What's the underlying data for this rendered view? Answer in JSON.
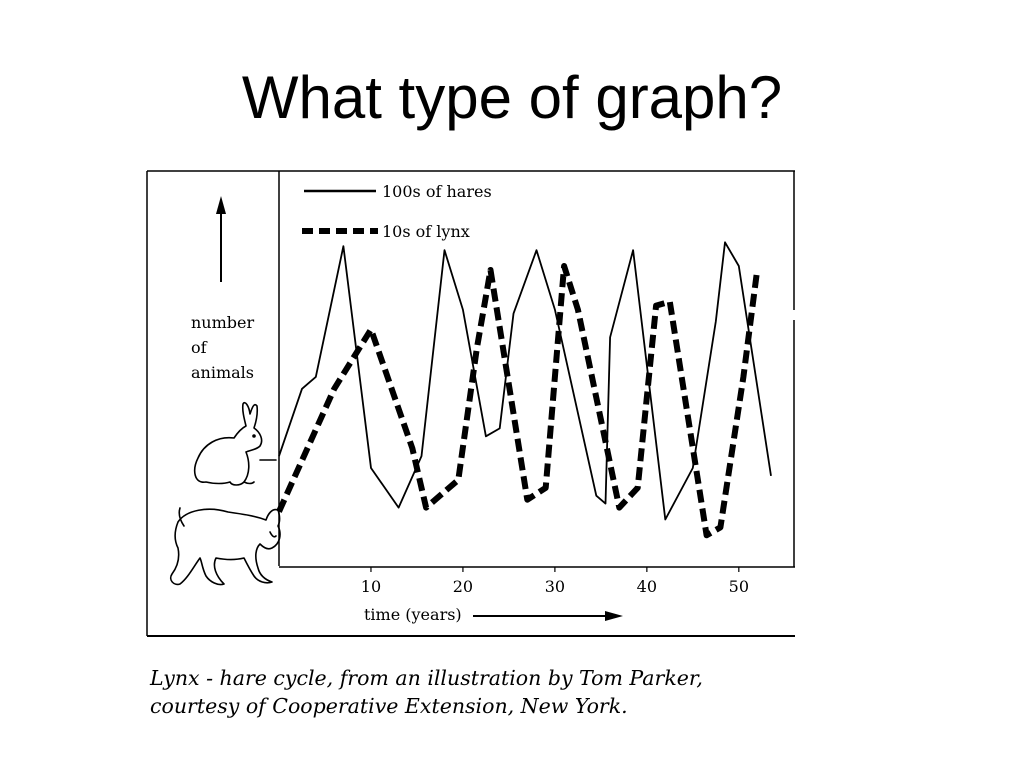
{
  "slide": {
    "title": "What type of graph?"
  },
  "caption": {
    "line1": "Lynx - hare cycle, from an illustration by Tom Parker,",
    "line2": "courtesy of Cooperative Extension, New York."
  },
  "icons": [
    "up-arrow-icon",
    "rabbit-icon",
    "lynx-icon",
    "right-arrow-icon"
  ],
  "chart_data": {
    "type": "line",
    "title": "",
    "xlabel": "time (years)",
    "ylabel": "number of animals",
    "xlim": [
      0,
      56
    ],
    "ylim": [
      0,
      100
    ],
    "xticks": [
      10,
      20,
      30,
      40,
      50
    ],
    "tick_labels": [
      "10",
      "20",
      "30",
      "40",
      "50"
    ],
    "legend_position": "top-left",
    "grid": false,
    "series": [
      {
        "name": "100s of hares",
        "style": "solid",
        "color": "#000000",
        "x": [
          0,
          2.5,
          4,
          7,
          10,
          13,
          15.5,
          18,
          20,
          22.5,
          24,
          25.5,
          28,
          30,
          34.5,
          35.5,
          36,
          38.5,
          42,
          45,
          47.5,
          48.5,
          50,
          53.5
        ],
        "y": [
          28,
          45,
          48,
          81,
          25,
          15,
          28,
          80,
          65,
          33,
          35,
          64,
          80,
          65,
          18,
          16,
          58,
          80,
          12,
          25,
          62,
          82,
          76,
          23
        ]
      },
      {
        "name": "10s of lynx",
        "style": "dashed",
        "color": "#000000",
        "x": [
          0,
          6,
          10,
          14.5,
          16,
          17.5,
          19.5,
          21.5,
          23,
          27,
          29,
          31,
          32.5,
          37,
          39,
          41,
          42.5,
          46.5,
          48,
          50.5,
          52
        ],
        "y": [
          14,
          45,
          60,
          30,
          15,
          18,
          22,
          55,
          75,
          17,
          20,
          76,
          65,
          15,
          20,
          66,
          67,
          8,
          10,
          48,
          75
        ]
      }
    ]
  }
}
